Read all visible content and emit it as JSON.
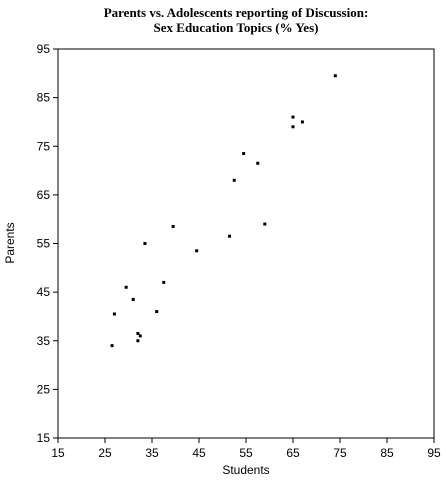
{
  "chart_data": {
    "type": "scatter",
    "title_lines": [
      "Parents vs. Adolescents reporting of Discussion:",
      "Sex Education Topics  (% Yes)"
    ],
    "xlabel": "Students",
    "ylabel": "Parents",
    "xlim": [
      15,
      95
    ],
    "ylim": [
      15,
      95
    ],
    "xticks": [
      15,
      25,
      35,
      45,
      55,
      65,
      75,
      85,
      95
    ],
    "yticks": [
      15,
      25,
      35,
      45,
      55,
      65,
      75,
      85,
      95
    ],
    "grid": false,
    "legend": "none",
    "point_color": "#000000",
    "x": [
      26.5,
      27,
      29.5,
      31,
      32,
      32,
      32.5,
      33.5,
      36,
      37.5,
      39.5,
      44.5,
      51.5,
      52.5,
      54.5,
      57.5,
      59,
      65,
      65,
      67,
      74
    ],
    "y": [
      34,
      40.5,
      46,
      43.5,
      35,
      36.5,
      36,
      55,
      41,
      47,
      58.5,
      53.5,
      56.5,
      68,
      73.5,
      71.5,
      59,
      79,
      81,
      80,
      89.5
    ]
  }
}
